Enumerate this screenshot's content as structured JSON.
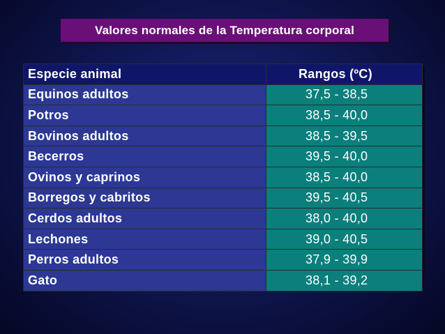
{
  "title": "Valores normales de la Temperatura corporal",
  "table": {
    "headers": [
      "Especie animal",
      "Rangos (ºC)"
    ],
    "rows": [
      {
        "species": "Equinos adultos",
        "range": "37,5 - 38,5"
      },
      {
        "species": "Potros",
        "range": "38,5 - 40,0"
      },
      {
        "species": "Bovinos adultos",
        "range": "38,5 - 39,5"
      },
      {
        "species": "Becerros",
        "range": "39,5 - 40,0"
      },
      {
        "species": "Ovinos y caprinos",
        "range": "38,5 - 40,0"
      },
      {
        "species": "Borregos y cabritos",
        "range": "39,5 - 40,5"
      },
      {
        "species": "Cerdos adultos",
        "range": "38,0 - 40,0"
      },
      {
        "species": "Lechones",
        "range": "39,0 - 40,5"
      },
      {
        "species": "Perros adultos",
        "range": "37,9 - 39,9"
      },
      {
        "species": "Gato",
        "range": "38,1 - 39,2"
      }
    ]
  },
  "colors": {
    "background": "#121a5a",
    "title_box": "#6a0f78",
    "header_row": "#0f166a",
    "species_cell": "#2c3894",
    "range_cell": "#0b7f7c",
    "text": "#ffffff"
  }
}
